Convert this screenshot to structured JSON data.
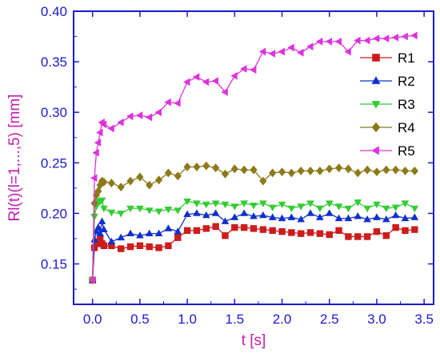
{
  "chart_data": {
    "type": "line",
    "title": "",
    "xlabel": "t [s]",
    "ylabel": "Rl(t)(l=1,...,5) [mm]",
    "xlim": [
      -0.2,
      3.6
    ],
    "ylim": [
      0.11,
      0.4
    ],
    "xticks": [
      "0.0",
      "0.5",
      "1.0",
      "1.5",
      "2.0",
      "2.5",
      "3.0",
      "3.5"
    ],
    "yticks": [
      "0.15",
      "0.20",
      "0.25",
      "0.30",
      "0.35",
      "0.40"
    ],
    "grid": false,
    "legend_position": "right",
    "x": [
      0.0,
      0.02,
      0.04,
      0.06,
      0.08,
      0.1,
      0.12,
      0.2,
      0.3,
      0.4,
      0.5,
      0.6,
      0.7,
      0.8,
      0.9,
      1.0,
      1.1,
      1.2,
      1.3,
      1.4,
      1.5,
      1.6,
      1.7,
      1.8,
      1.9,
      2.0,
      2.1,
      2.2,
      2.3,
      2.4,
      2.5,
      2.6,
      2.7,
      2.8,
      2.9,
      3.0,
      3.1,
      3.2,
      3.3,
      3.4
    ],
    "series": [
      {
        "name": "R1",
        "color": "#cc1c1c",
        "marker": "square",
        "values": [
          0.134,
          0.166,
          0.17,
          0.172,
          0.175,
          0.17,
          0.168,
          0.168,
          0.165,
          0.167,
          0.168,
          0.167,
          0.166,
          0.168,
          0.176,
          0.183,
          0.183,
          0.185,
          0.187,
          0.178,
          0.186,
          0.186,
          0.185,
          0.184,
          0.183,
          0.182,
          0.181,
          0.18,
          0.181,
          0.18,
          0.179,
          0.183,
          0.177,
          0.177,
          0.177,
          0.182,
          0.178,
          0.186,
          0.183,
          0.184
        ]
      },
      {
        "name": "R2",
        "color": "#1030cc",
        "marker": "triangle-up",
        "values": [
          0.134,
          0.174,
          0.182,
          0.186,
          0.18,
          0.192,
          0.184,
          0.172,
          0.176,
          0.18,
          0.178,
          0.18,
          0.18,
          0.185,
          0.182,
          0.199,
          0.2,
          0.198,
          0.2,
          0.192,
          0.196,
          0.2,
          0.197,
          0.198,
          0.196,
          0.195,
          0.196,
          0.194,
          0.2,
          0.196,
          0.2,
          0.195,
          0.195,
          0.197,
          0.194,
          0.196,
          0.194,
          0.198,
          0.195,
          0.196
        ]
      },
      {
        "name": "R3",
        "color": "#33cc33",
        "marker": "triangle-down",
        "values": [
          0.134,
          0.197,
          0.207,
          0.211,
          0.212,
          0.213,
          0.205,
          0.201,
          0.2,
          0.205,
          0.205,
          0.203,
          0.202,
          0.204,
          0.203,
          0.212,
          0.21,
          0.209,
          0.21,
          0.209,
          0.207,
          0.21,
          0.208,
          0.21,
          0.206,
          0.209,
          0.205,
          0.207,
          0.21,
          0.205,
          0.21,
          0.207,
          0.205,
          0.211,
          0.205,
          0.209,
          0.205,
          0.206,
          0.21,
          0.205
        ]
      },
      {
        "name": "R4",
        "color": "#8b7a1a",
        "marker": "diamond",
        "values": [
          0.134,
          0.21,
          0.218,
          0.222,
          0.228,
          0.232,
          0.231,
          0.23,
          0.226,
          0.232,
          0.236,
          0.228,
          0.233,
          0.24,
          0.237,
          0.246,
          0.246,
          0.247,
          0.245,
          0.239,
          0.244,
          0.243,
          0.243,
          0.232,
          0.24,
          0.241,
          0.24,
          0.242,
          0.242,
          0.242,
          0.244,
          0.245,
          0.244,
          0.24,
          0.243,
          0.241,
          0.243,
          0.243,
          0.242,
          0.242
        ]
      },
      {
        "name": "R5",
        "color": "#dd33dd",
        "marker": "triangle-left",
        "values": [
          0.134,
          0.235,
          0.26,
          0.27,
          0.28,
          0.29,
          0.288,
          0.284,
          0.29,
          0.296,
          0.297,
          0.295,
          0.3,
          0.31,
          0.309,
          0.33,
          0.335,
          0.33,
          0.331,
          0.32,
          0.336,
          0.343,
          0.342,
          0.36,
          0.358,
          0.36,
          0.364,
          0.359,
          0.365,
          0.37,
          0.37,
          0.37,
          0.36,
          0.371,
          0.371,
          0.373,
          0.373,
          0.374,
          0.375,
          0.376
        ]
      }
    ]
  }
}
